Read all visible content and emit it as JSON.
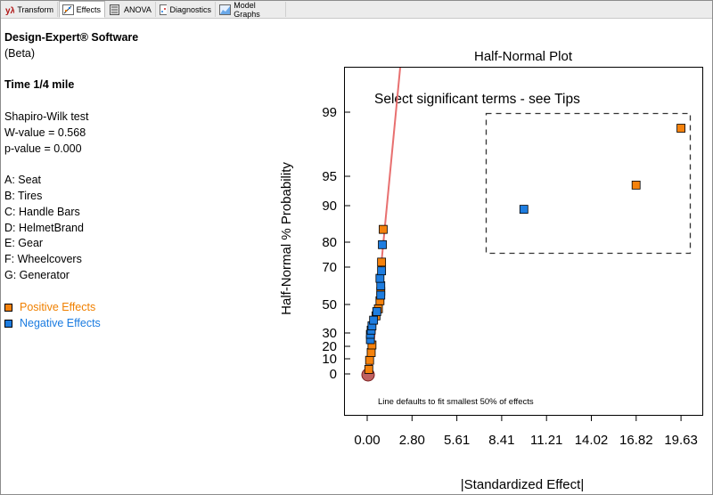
{
  "tabs": [
    {
      "label": "Transform",
      "icon": "transform-icon"
    },
    {
      "label": "Effects",
      "icon": "effects-icon",
      "active": true
    },
    {
      "label": "ANOVA",
      "icon": "anova-icon"
    },
    {
      "label": "Diagnostics",
      "icon": "diagnostics-icon"
    },
    {
      "label": "Model Graphs",
      "icon": "model-graphs-icon"
    }
  ],
  "info": {
    "software": "Design-Expert® Software",
    "beta": "(Beta)",
    "response": "Time 1/4 mile",
    "test_name": "Shapiro-Wilk test",
    "w_value": "W-value = 0.568",
    "p_value": "p-value = 0.000",
    "factors": [
      "A: Seat",
      "B: Tires",
      "C: Handle Bars",
      "D: HelmetBrand",
      "E: Gear",
      "F: Wheelcovers",
      "G: Generator"
    ]
  },
  "legend": {
    "positive_label": "Positive Effects",
    "negative_label": "Negative Effects",
    "positive_color": "#f5820d",
    "negative_color": "#1e7de0",
    "positive_text_color": "#f08000",
    "negative_text_color": "#1a7be0"
  },
  "chart_data": {
    "type": "scatter",
    "title": "Half-Normal Plot",
    "xlabel": "|Standardized Effect|",
    "ylabel": "Half-Normal % Probability",
    "annotation": "Select significant terms - see Tips",
    "footnote": "Line defaults to fit smallest 50% of effects",
    "x_ticks": [
      "0.00",
      "2.80",
      "5.61",
      "8.41",
      "11.21",
      "14.02",
      "16.82",
      "19.63"
    ],
    "y_ticks": [
      "0",
      "10",
      "20",
      "30",
      "50",
      "70",
      "80",
      "90",
      "95",
      "99"
    ],
    "line_color": "#e87070",
    "series": [
      {
        "name": "Positive Effects",
        "color": "#f5820d",
        "points": [
          {
            "x": 0.1,
            "y": 3
          },
          {
            "x": 0.15,
            "y": 9
          },
          {
            "x": 0.25,
            "y": 15
          },
          {
            "x": 0.3,
            "y": 21
          },
          {
            "x": 0.55,
            "y": 42
          },
          {
            "x": 0.7,
            "y": 47
          },
          {
            "x": 0.8,
            "y": 52
          },
          {
            "x": 0.85,
            "y": 57
          },
          {
            "x": 0.9,
            "y": 72
          },
          {
            "x": 1.0,
            "y": 83.5
          },
          {
            "x": 16.82,
            "y": 93.5
          },
          {
            "x": 19.63,
            "y": 98
          }
        ]
      },
      {
        "name": "Negative Effects",
        "color": "#1e7de0",
        "points": [
          {
            "x": 0.2,
            "y": 25
          },
          {
            "x": 0.2,
            "y": 29
          },
          {
            "x": 0.25,
            "y": 32
          },
          {
            "x": 0.3,
            "y": 35
          },
          {
            "x": 0.4,
            "y": 39
          },
          {
            "x": 0.6,
            "y": 45
          },
          {
            "x": 0.85,
            "y": 55
          },
          {
            "x": 0.85,
            "y": 60
          },
          {
            "x": 0.8,
            "y": 64
          },
          {
            "x": 0.9,
            "y": 68
          },
          {
            "x": 0.95,
            "y": 79
          },
          {
            "x": 9.8,
            "y": 89
          }
        ]
      }
    ],
    "error_point": {
      "x": 0.0,
      "y": 0
    }
  }
}
